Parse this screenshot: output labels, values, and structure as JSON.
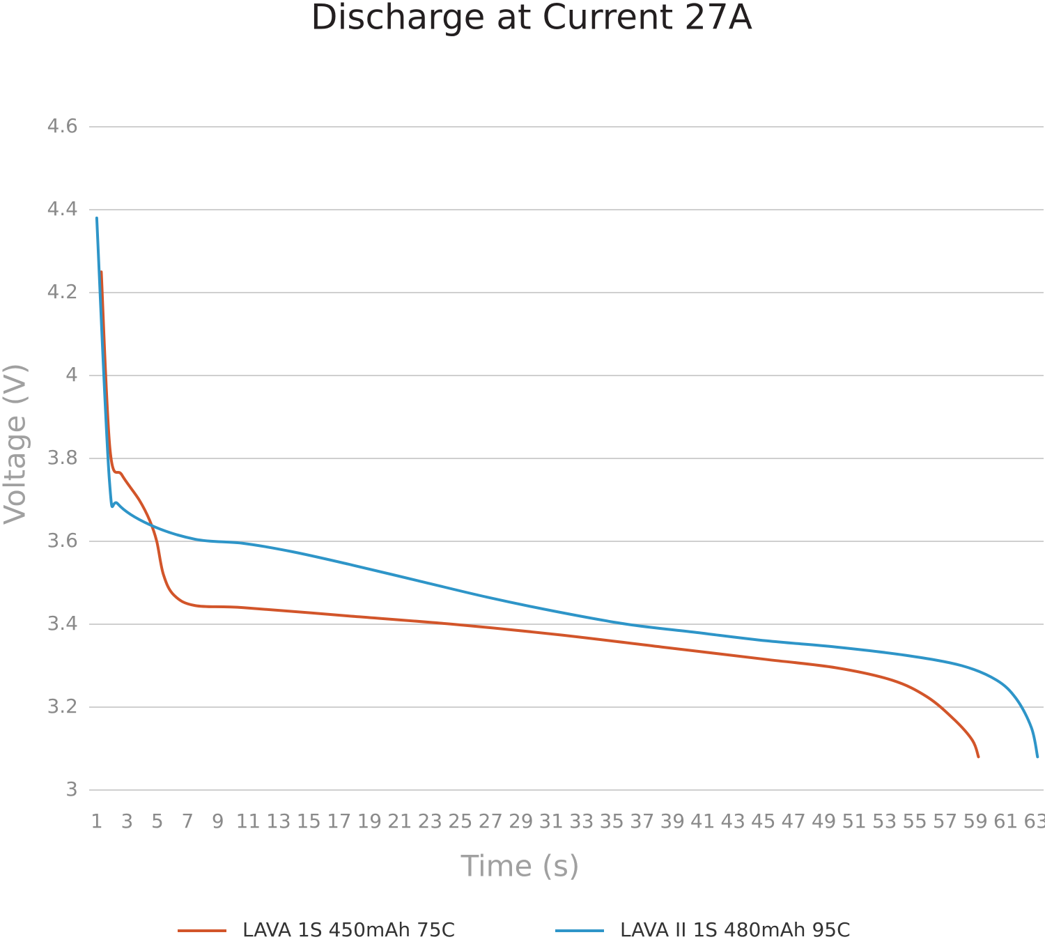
{
  "chart_data": {
    "type": "line",
    "title": "Discharge at Current 27A",
    "x_label": "Time (s)",
    "y_label": "Voltage (V)",
    "xlim": [
      0.5,
      63.5
    ],
    "xticks": [
      1,
      3,
      5,
      7,
      9,
      11,
      13,
      15,
      17,
      19,
      21,
      23,
      25,
      27,
      29,
      31,
      33,
      35,
      37,
      39,
      41,
      43,
      45,
      47,
      49,
      51,
      53,
      55,
      57,
      59,
      61,
      63
    ],
    "ylim": [
      3,
      4.6
    ],
    "yticks": [
      3,
      3.2,
      3.4,
      3.6,
      3.8,
      {
        "value": 4,
        "label": "4"
      },
      4.2,
      4.4,
      4.6
    ],
    "grid": true,
    "legend": "bottom",
    "series": [
      {
        "name": "LAVA 1S 450mAh 75C",
        "color": "#d2552a",
        "x": [
          1.3,
          1.88,
          2.66,
          3.8,
          4.5,
          4.96,
          5.4,
          6.1,
          7.5,
          10.7,
          17.6,
          24.5,
          31.4,
          38.3,
          45.2,
          49.8,
          53.5,
          55.8,
          57.6,
          58.8,
          59.2
        ],
        "values": [
          4.25,
          3.82,
          3.76,
          3.7,
          3.65,
          3.6,
          3.52,
          3.47,
          3.445,
          3.44,
          3.42,
          3.4,
          3.375,
          3.345,
          3.315,
          3.295,
          3.265,
          3.225,
          3.17,
          3.12,
          3.08
        ]
      },
      {
        "name": "LAVA II 1S 480mAh 95C",
        "color": "#2e95c8",
        "x": [
          1,
          1.83,
          2.4,
          4.5,
          7.5,
          10.7,
          13.9,
          17.6,
          22.2,
          26.8,
          31.4,
          36,
          40.6,
          45.2,
          49.8,
          54.4,
          58.1,
          60.4,
          61.7,
          62.7,
          63.1
        ],
        "values": [
          4.38,
          3.75,
          3.69,
          3.64,
          3.605,
          3.595,
          3.575,
          3.545,
          3.505,
          3.465,
          3.43,
          3.4,
          3.38,
          3.36,
          3.345,
          3.325,
          3.3,
          3.265,
          3.22,
          3.15,
          3.08
        ]
      }
    ]
  }
}
